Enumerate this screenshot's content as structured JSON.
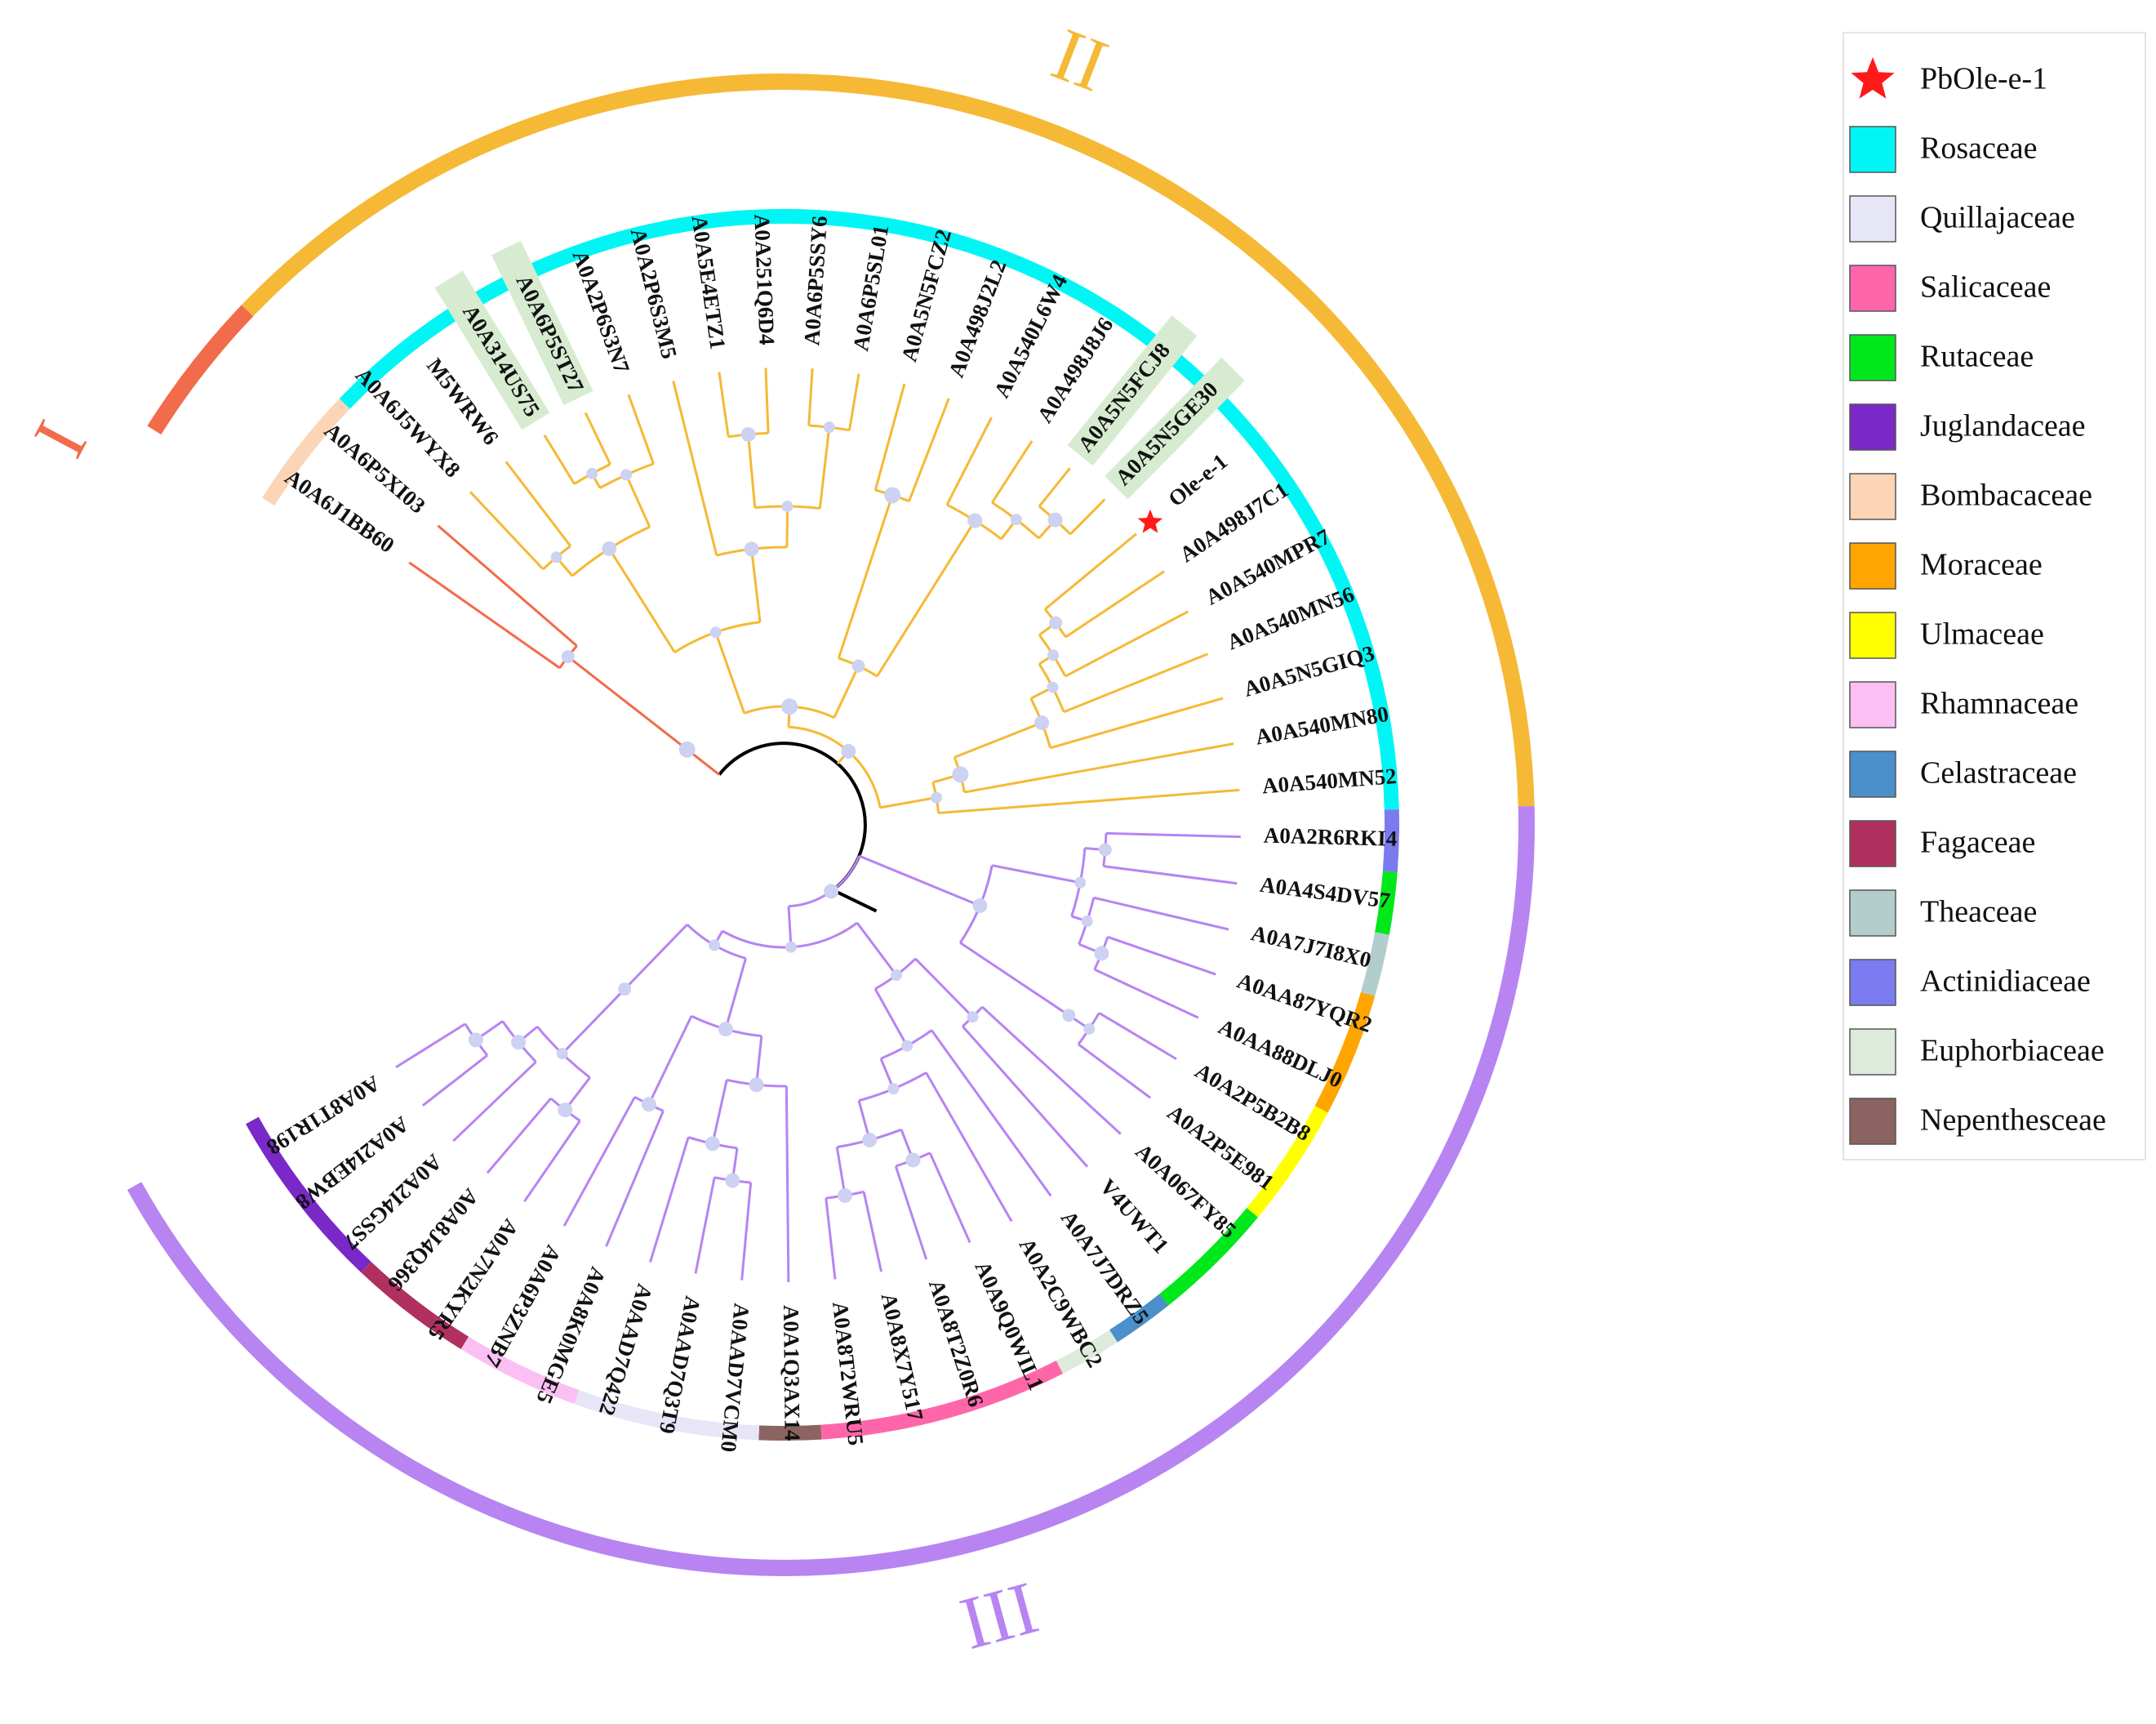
{
  "figure": {
    "colors": {
      "clade_I": "#f26b4a",
      "clade_II": "#f5b935",
      "clade_III": "#b784f2",
      "root": "#000000",
      "node_dot": "#cdd2f2",
      "highlight": "#d7ebd1",
      "star": "#ff1a1a"
    },
    "clades": [
      {
        "id": "I",
        "label": "I",
        "color": "#f26b4a"
      },
      {
        "id": "II",
        "label": "II",
        "color": "#f5b935"
      },
      {
        "id": "III",
        "label": "III",
        "color": "#b784f2"
      }
    ],
    "leaves": [
      {
        "label": "A0A6J1BB60",
        "clade": "I",
        "family": "Bombacaceae"
      },
      {
        "label": "A0A6P5XI03",
        "clade": "I",
        "family": "Bombacaceae"
      },
      {
        "label": "A0A6J5WYX8",
        "clade": "II",
        "family": "Rosaceae"
      },
      {
        "label": "M5WRW6",
        "clade": "II",
        "family": "Rosaceae"
      },
      {
        "label": "A0A314US75",
        "clade": "II",
        "family": "Rosaceae",
        "highlight": true
      },
      {
        "label": "A0A6P5ST27",
        "clade": "II",
        "family": "Rosaceae",
        "highlight": true
      },
      {
        "label": "A0A2P6S3N7",
        "clade": "II",
        "family": "Rosaceae"
      },
      {
        "label": "A0A2P6S3M5",
        "clade": "II",
        "family": "Rosaceae"
      },
      {
        "label": "A0A5E4ETZ1",
        "clade": "II",
        "family": "Rosaceae"
      },
      {
        "label": "A0A251Q6D4",
        "clade": "II",
        "family": "Rosaceae"
      },
      {
        "label": "A0A6P5SSY6",
        "clade": "II",
        "family": "Rosaceae"
      },
      {
        "label": "A0A6P5SL01",
        "clade": "II",
        "family": "Rosaceae"
      },
      {
        "label": "A0A5N5FCZ2",
        "clade": "II",
        "family": "Rosaceae"
      },
      {
        "label": "A0A498J2L2",
        "clade": "II",
        "family": "Rosaceae"
      },
      {
        "label": "A0A540L6W4",
        "clade": "II",
        "family": "Rosaceae"
      },
      {
        "label": "A0A498J8J6",
        "clade": "II",
        "family": "Rosaceae"
      },
      {
        "label": "A0A5N5FCJ8",
        "clade": "II",
        "family": "Rosaceae",
        "highlight": true
      },
      {
        "label": "A0A5N5GE30",
        "clade": "II",
        "family": "Rosaceae",
        "highlight": true
      },
      {
        "label": "Ole-e-1",
        "clade": "II",
        "family": "Rosaceae",
        "star": true
      },
      {
        "label": "A0A498J7C1",
        "clade": "II",
        "family": "Rosaceae"
      },
      {
        "label": "A0A540MPR7",
        "clade": "II",
        "family": "Rosaceae"
      },
      {
        "label": "A0A540MN56",
        "clade": "II",
        "family": "Rosaceae"
      },
      {
        "label": "A0A5N5GIQ3",
        "clade": "II",
        "family": "Rosaceae"
      },
      {
        "label": "A0A540MN80",
        "clade": "II",
        "family": "Rosaceae"
      },
      {
        "label": "A0A540MN52",
        "clade": "II",
        "family": "Rosaceae"
      },
      {
        "label": "A0A2R6RKI4",
        "clade": "III",
        "family": "Actinidiaceae"
      },
      {
        "label": "A0A4S4DV57",
        "clade": "III",
        "family": "Rutaceae"
      },
      {
        "label": "A0A7J7I8X0",
        "clade": "III",
        "family": "Theaceae"
      },
      {
        "label": "A0AA87YQR2",
        "clade": "III",
        "family": "Moraceae"
      },
      {
        "label": "A0AA88DLJ0",
        "clade": "III",
        "family": "Moraceae"
      },
      {
        "label": "A0A2P5B2B8",
        "clade": "III",
        "family": "Ulmaceae"
      },
      {
        "label": "A0A2P5E981",
        "clade": "III",
        "family": "Ulmaceae"
      },
      {
        "label": "A0A067FY85",
        "clade": "III",
        "family": "Rutaceae"
      },
      {
        "label": "V4UWT1",
        "clade": "III",
        "family": "Rutaceae"
      },
      {
        "label": "A0A7J7DRZ5",
        "clade": "III",
        "family": "Celastraceae"
      },
      {
        "label": "A0A2C9WBC2",
        "clade": "III",
        "family": "Euphorbiaceae"
      },
      {
        "label": "A0A9Q0WIL1",
        "clade": "III",
        "family": "Salicaceae"
      },
      {
        "label": "A0A8T2Z0R6",
        "clade": "III",
        "family": "Salicaceae"
      },
      {
        "label": "A0A8X7Y517",
        "clade": "III",
        "family": "Salicaceae"
      },
      {
        "label": "A0A8T2WRU5",
        "clade": "III",
        "family": "Salicaceae"
      },
      {
        "label": "A0A1Q3AX14",
        "clade": "III",
        "family": "Nepenthesceae"
      },
      {
        "label": "A0AAD7VCM0",
        "clade": "III",
        "family": "Quillajaceae"
      },
      {
        "label": "A0AAD7Q3T9",
        "clade": "III",
        "family": "Quillajaceae"
      },
      {
        "label": "A0AAD7Q422",
        "clade": "III",
        "family": "Quillajaceae"
      },
      {
        "label": "A0A8K0MGE5",
        "clade": "III",
        "family": "Rhamnaceae"
      },
      {
        "label": "A0A6P3ZNB7",
        "clade": "III",
        "family": "Rhamnaceae"
      },
      {
        "label": "A0A7N2KYR5",
        "clade": "III",
        "family": "Fagaceae"
      },
      {
        "label": "A0A8J4Q366",
        "clade": "III",
        "family": "Fagaceae"
      },
      {
        "label": "A0A2I4GSS7",
        "clade": "III",
        "family": "Juglandaceae"
      },
      {
        "label": "A0A2I4EBW8",
        "clade": "III",
        "family": "Juglandaceae"
      },
      {
        "label": "A0A8T1R198",
        "clade": "III",
        "family": "Juglandaceae"
      }
    ],
    "legend": {
      "items": [
        {
          "label": "PbOle-e-1",
          "color": "#ff1a1a",
          "symbol": "star"
        },
        {
          "label": "Rosaceae",
          "color": "#00f5f5"
        },
        {
          "label": "Quillajaceae",
          "color": "#e6e6f7"
        },
        {
          "label": "Salicaceae",
          "color": "#ff66aa"
        },
        {
          "label": "Rutaceae",
          "color": "#00e81c"
        },
        {
          "label": "Juglandaceae",
          "color": "#7a28c8"
        },
        {
          "label": "Bombacaceae",
          "color": "#fbd5b5"
        },
        {
          "label": "Moraceae",
          "color": "#ffa500"
        },
        {
          "label": "Ulmaceae",
          "color": "#ffff00"
        },
        {
          "label": "Rhamnaceae",
          "color": "#fbbff3"
        },
        {
          "label": "Celastraceae",
          "color": "#4b8fcb"
        },
        {
          "label": "Fagaceae",
          "color": "#b03060"
        },
        {
          "label": "Theaceae",
          "color": "#b3cccc"
        },
        {
          "label": "Actinidiaceae",
          "color": "#7b7bf0"
        },
        {
          "label": "Euphorbiaceae",
          "color": "#dcebdc"
        },
        {
          "label": "Nepenthesceae",
          "color": "#8b6461"
        }
      ]
    }
  }
}
